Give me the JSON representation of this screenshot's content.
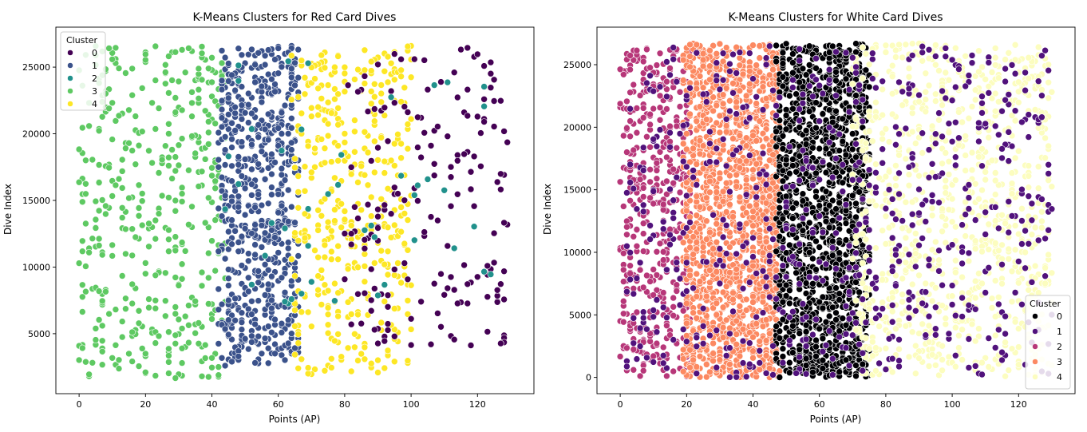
{
  "chart_data": [
    {
      "type": "scatter",
      "title": "K-Means Clusters for Red Card Dives",
      "xlabel": "Points (AP)",
      "ylabel": "Dive Index",
      "xlim": [
        -7,
        137
      ],
      "ylim": [
        500,
        28000
      ],
      "xticks": [
        0,
        20,
        40,
        60,
        80,
        100,
        120
      ],
      "yticks": [
        5000,
        10000,
        15000,
        20000,
        25000
      ],
      "grid": false,
      "legend": {
        "title": "Cluster",
        "placement": "top-left",
        "entries": [
          {
            "label": "0",
            "color": "#440154"
          },
          {
            "label": "1",
            "color": "#3b528b"
          },
          {
            "label": "2",
            "color": "#21918c"
          },
          {
            "label": "3",
            "color": "#5ec962"
          },
          {
            "label": "4",
            "color": "#fde725"
          }
        ]
      },
      "series": [
        {
          "cluster": "0",
          "color": "#440154",
          "x_range": [
            80,
            129
          ],
          "y_range": [
            4000,
            26500
          ],
          "count": 170
        },
        {
          "cluster": "1",
          "color": "#3b528b",
          "x_range": [
            42,
            66
          ],
          "y_range": [
            2600,
            26600
          ],
          "count": 650
        },
        {
          "cluster": "2",
          "color": "#21918c",
          "x_range": [
            40,
            126
          ],
          "y_range": [
            7000,
            25500
          ],
          "count": 45
        },
        {
          "cluster": "3",
          "color": "#5ec962",
          "x_range": [
            0,
            44
          ],
          "y_range": [
            1500,
            26600
          ],
          "count": 420
        },
        {
          "cluster": "4",
          "color": "#fde725",
          "x_range": [
            64,
            100
          ],
          "y_range": [
            1900,
            26600
          ],
          "count": 400
        }
      ]
    },
    {
      "type": "scatter",
      "title": "K-Means Clusters for White Card Dives",
      "xlabel": "Points (AP)",
      "ylabel": "Dive Index",
      "xlim": [
        -7,
        137
      ],
      "ylim": [
        -1300,
        28000
      ],
      "xticks": [
        0,
        20,
        40,
        60,
        80,
        100,
        120
      ],
      "yticks": [
        0,
        5000,
        10000,
        15000,
        20000,
        25000
      ],
      "grid": false,
      "legend": {
        "title": "Cluster",
        "placement": "bottom-right",
        "entries": [
          {
            "label": "0",
            "color": "#000004"
          },
          {
            "label": "1",
            "color": "#51127c"
          },
          {
            "label": "2",
            "color": "#b73779"
          },
          {
            "label": "3",
            "color": "#fc8961"
          },
          {
            "label": "4",
            "color": "#fcfdbf"
          }
        ]
      },
      "series": [
        {
          "cluster": "0",
          "color": "#000004",
          "x_range": [
            47,
            75
          ],
          "y_range": [
            0,
            26700
          ],
          "count": 1500
        },
        {
          "cluster": "1",
          "color": "#51127c",
          "x_range": [
            2,
            130
          ],
          "y_range": [
            0,
            26500
          ],
          "count": 650
        },
        {
          "cluster": "2",
          "color": "#b73779",
          "x_range": [
            0,
            21
          ],
          "y_range": [
            0,
            26300
          ],
          "count": 450
        },
        {
          "cluster": "3",
          "color": "#fc8961",
          "x_range": [
            19,
            48
          ],
          "y_range": [
            0,
            26700
          ],
          "count": 1500
        },
        {
          "cluster": "4",
          "color": "#fcfdbf",
          "x_range": [
            70,
            130
          ],
          "y_range": [
            0,
            26700
          ],
          "count": 900
        }
      ]
    }
  ]
}
